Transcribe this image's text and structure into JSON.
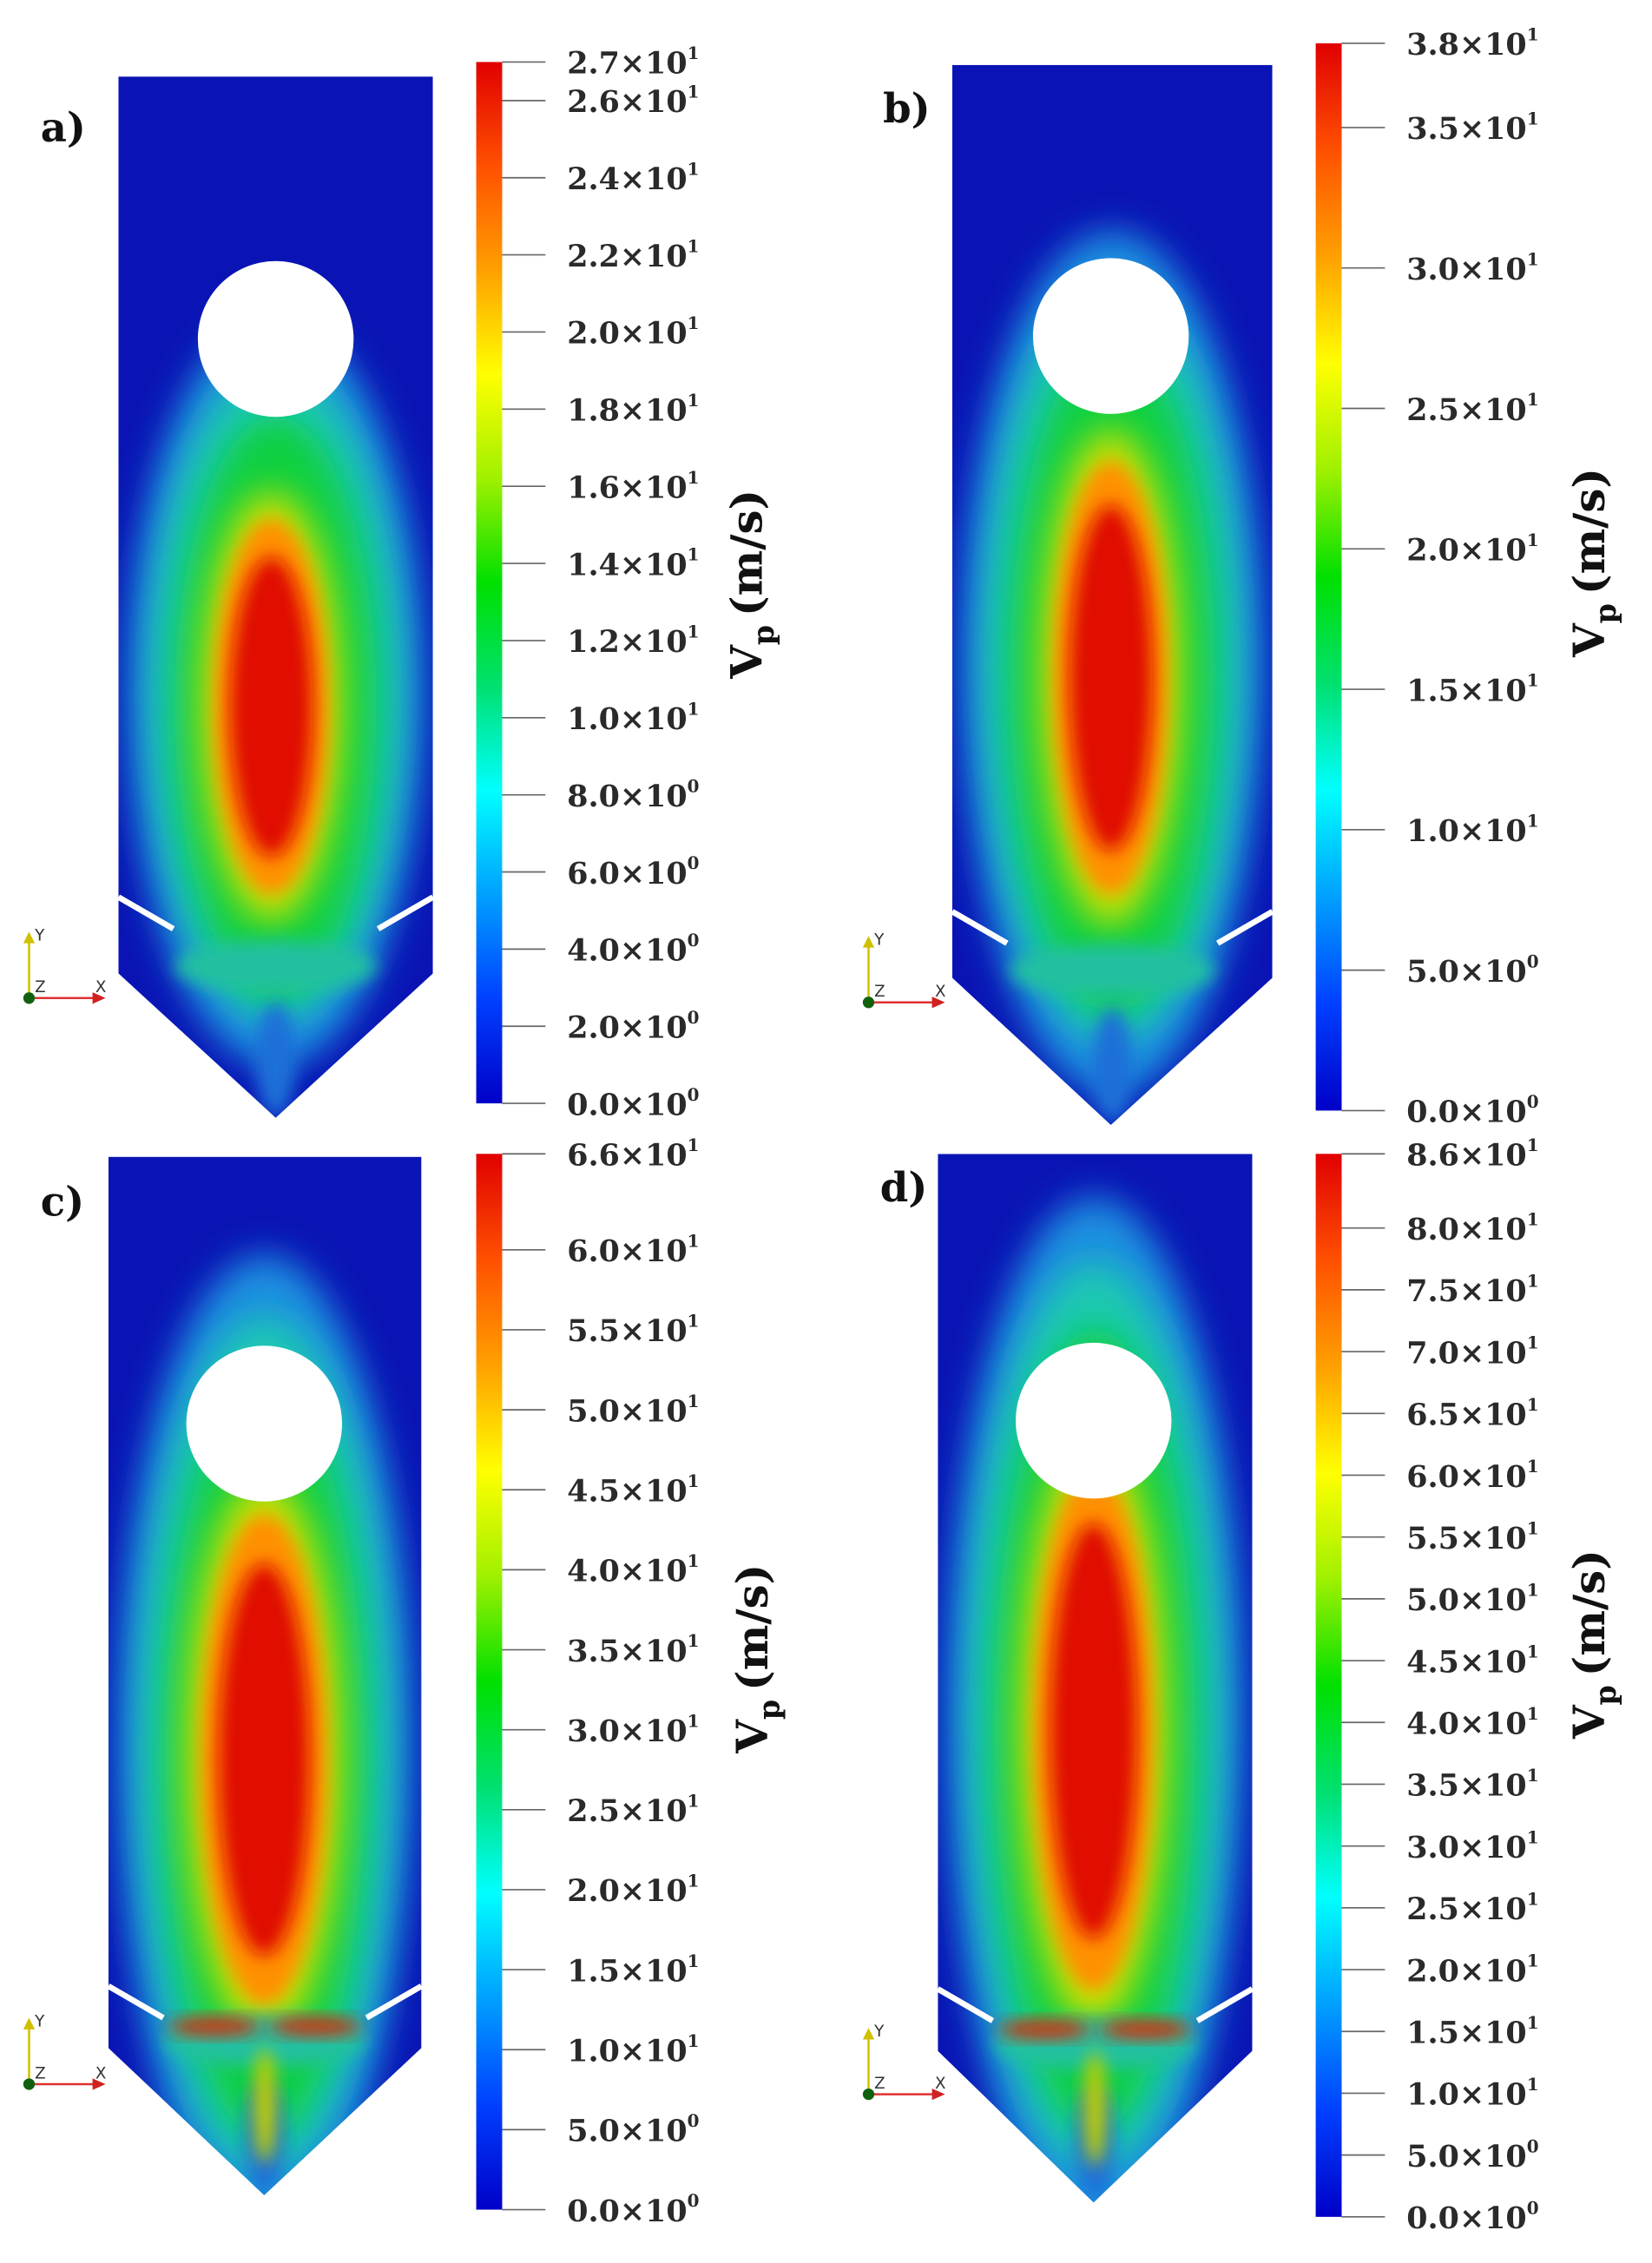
{
  "chart_data": [
    {
      "type": "heatmap",
      "panel_label": "a)",
      "colorbar_title": "V",
      "colorbar_title_sub": "p",
      "colorbar_unit": "(m/s)",
      "range": [
        0,
        27
      ],
      "ticks": [
        {
          "v": 27,
          "m": "2.7×10",
          "e": "1"
        },
        {
          "v": 26,
          "m": "2.6×10",
          "e": "1"
        },
        {
          "v": 24,
          "m": "2.4×10",
          "e": "1"
        },
        {
          "v": 22,
          "m": "2.2×10",
          "e": "1"
        },
        {
          "v": 20,
          "m": "2.0×10",
          "e": "1"
        },
        {
          "v": 18,
          "m": "1.8×10",
          "e": "1"
        },
        {
          "v": 16,
          "m": "1.6×10",
          "e": "1"
        },
        {
          "v": 14,
          "m": "1.4×10",
          "e": "1"
        },
        {
          "v": 12,
          "m": "1.2×10",
          "e": "1"
        },
        {
          "v": 10,
          "m": "1.0×10",
          "e": "1"
        },
        {
          "v": 8,
          "m": "8.0×10",
          "e": "0"
        },
        {
          "v": 6,
          "m": "6.0×10",
          "e": "0"
        },
        {
          "v": 4,
          "m": "4.0×10",
          "e": "0"
        },
        {
          "v": 2,
          "m": "2.0×10",
          "e": "0"
        },
        {
          "v": 0,
          "m": "0.0×10",
          "e": "0"
        }
      ],
      "axes": {
        "y": "Y",
        "z": "Z",
        "x": "X"
      }
    },
    {
      "type": "heatmap",
      "panel_label": "b)",
      "colorbar_title": "V",
      "colorbar_title_sub": "p",
      "colorbar_unit": "(m/s)",
      "range": [
        0,
        38
      ],
      "ticks": [
        {
          "v": 38,
          "m": "3.8×10",
          "e": "1"
        },
        {
          "v": 35,
          "m": "3.5×10",
          "e": "1"
        },
        {
          "v": 30,
          "m": "3.0×10",
          "e": "1"
        },
        {
          "v": 25,
          "m": "2.5×10",
          "e": "1"
        },
        {
          "v": 20,
          "m": "2.0×10",
          "e": "1"
        },
        {
          "v": 15,
          "m": "1.5×10",
          "e": "1"
        },
        {
          "v": 10,
          "m": "1.0×10",
          "e": "1"
        },
        {
          "v": 5,
          "m": "5.0×10",
          "e": "0"
        },
        {
          "v": 0,
          "m": "0.0×10",
          "e": "0"
        }
      ],
      "axes": {
        "y": "Y",
        "z": "Z",
        "x": "X"
      }
    },
    {
      "type": "heatmap",
      "panel_label": "c)",
      "colorbar_title": "V",
      "colorbar_title_sub": "p",
      "colorbar_unit": "(m/s)",
      "range": [
        0,
        66
      ],
      "ticks": [
        {
          "v": 66,
          "m": "6.6×10",
          "e": "1"
        },
        {
          "v": 60,
          "m": "6.0×10",
          "e": "1"
        },
        {
          "v": 55,
          "m": "5.5×10",
          "e": "1"
        },
        {
          "v": 50,
          "m": "5.0×10",
          "e": "1"
        },
        {
          "v": 45,
          "m": "4.5×10",
          "e": "1"
        },
        {
          "v": 40,
          "m": "4.0×10",
          "e": "1"
        },
        {
          "v": 35,
          "m": "3.5×10",
          "e": "1"
        },
        {
          "v": 30,
          "m": "3.0×10",
          "e": "1"
        },
        {
          "v": 25,
          "m": "2.5×10",
          "e": "1"
        },
        {
          "v": 20,
          "m": "2.0×10",
          "e": "1"
        },
        {
          "v": 15,
          "m": "1.5×10",
          "e": "1"
        },
        {
          "v": 10,
          "m": "1.0×10",
          "e": "1"
        },
        {
          "v": 5,
          "m": "5.0×10",
          "e": "0"
        },
        {
          "v": 0,
          "m": "0.0×10",
          "e": "0"
        }
      ],
      "axes": {
        "y": "Y",
        "z": "Z",
        "x": "X"
      }
    },
    {
      "type": "heatmap",
      "panel_label": "d)",
      "colorbar_title": "V",
      "colorbar_title_sub": "p",
      "colorbar_unit": "(m/s)",
      "range": [
        0,
        86
      ],
      "ticks": [
        {
          "v": 86,
          "m": "8.6×10",
          "e": "1"
        },
        {
          "v": 80,
          "m": "8.0×10",
          "e": "1"
        },
        {
          "v": 75,
          "m": "7.5×10",
          "e": "1"
        },
        {
          "v": 70,
          "m": "7.0×10",
          "e": "1"
        },
        {
          "v": 65,
          "m": "6.5×10",
          "e": "1"
        },
        {
          "v": 60,
          "m": "6.0×10",
          "e": "1"
        },
        {
          "v": 55,
          "m": "5.5×10",
          "e": "1"
        },
        {
          "v": 50,
          "m": "5.0×10",
          "e": "1"
        },
        {
          "v": 45,
          "m": "4.5×10",
          "e": "1"
        },
        {
          "v": 40,
          "m": "4.0×10",
          "e": "1"
        },
        {
          "v": 35,
          "m": "3.5×10",
          "e": "1"
        },
        {
          "v": 30,
          "m": "3.0×10",
          "e": "1"
        },
        {
          "v": 25,
          "m": "2.5×10",
          "e": "1"
        },
        {
          "v": 20,
          "m": "2.0×10",
          "e": "1"
        },
        {
          "v": 15,
          "m": "1.5×10",
          "e": "1"
        },
        {
          "v": 10,
          "m": "1.0×10",
          "e": "1"
        },
        {
          "v": 5,
          "m": "5.0×10",
          "e": "0"
        },
        {
          "v": 0,
          "m": "0.0×10",
          "e": "0"
        }
      ],
      "axes": {
        "y": "Y",
        "z": "Z",
        "x": "X"
      }
    }
  ],
  "colormap": [
    "#0000c8",
    "#0040ff",
    "#00a0ff",
    "#00ffff",
    "#00e070",
    "#00e000",
    "#a0f000",
    "#ffff00",
    "#ffa000",
    "#ff5000",
    "#e00000"
  ]
}
